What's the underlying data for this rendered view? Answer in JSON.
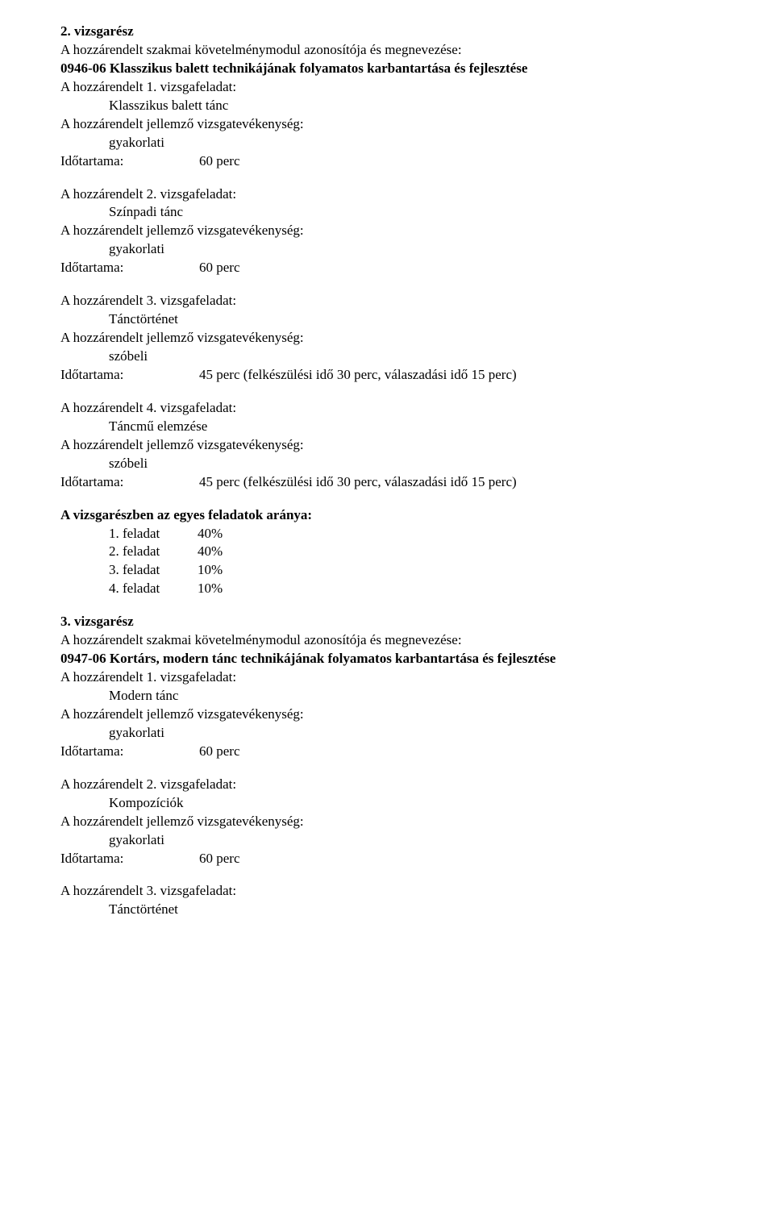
{
  "part2": {
    "title": "2. vizsgarész",
    "module_intro": "A hozzárendelt szakmai követelménymodul azonosítója és megnevezése:",
    "module_code_name": " 0946-06  Klasszikus balett technikájának folyamatos karbantartása és fejlesztése",
    "tasks": [
      {
        "header": "A hozzárendelt 1. vizsgafeladat:",
        "name": "Klasszikus balett tánc",
        "activity_intro": "A hozzárendelt jellemző vizsgatevékenység:",
        "activity_type": "gyakorlati",
        "duration_label": "Időtartama:",
        "duration_value": "60 perc"
      },
      {
        "header": "A hozzárendelt 2. vizsgafeladat:",
        "name": "Színpadi tánc",
        "activity_intro": "A hozzárendelt jellemző vizsgatevékenység:",
        "activity_type": "gyakorlati",
        "duration_label": "Időtartama:",
        "duration_value": "60 perc"
      },
      {
        "header": "A hozzárendelt 3. vizsgafeladat:",
        "name": "Tánctörténet",
        "activity_intro": "A hozzárendelt jellemző vizsgatevékenység:",
        "activity_type": "szóbeli",
        "duration_label": "Időtartama:",
        "duration_value": "45 perc (felkészülési idő 30 perc, válaszadási idő 15 perc)"
      },
      {
        "header": "A hozzárendelt 4. vizsgafeladat:",
        "name": "Táncmű elemzése",
        "activity_intro": "A hozzárendelt jellemző vizsgatevékenység:",
        "activity_type": "szóbeli",
        "duration_label": "Időtartama:",
        "duration_value": "45 perc (felkészülési idő 30 perc, válaszadási idő 15 perc)"
      }
    ],
    "ratio_title": "A vizsgarészben az egyes feladatok aránya:",
    "ratios": [
      {
        "label": "1. feladat",
        "value": "40%"
      },
      {
        "label": "2. feladat",
        "value": "40%"
      },
      {
        "label": "3. feladat",
        "value": "10%"
      },
      {
        "label": "4. feladat",
        "value": "10%"
      }
    ]
  },
  "part3": {
    "title": "3. vizsgarész",
    "module_intro": "A hozzárendelt szakmai követelménymodul azonosítója és megnevezése:",
    "module_code_name": " 0947-06  Kortárs, modern tánc technikájának folyamatos karbantartása és fejlesztése",
    "tasks": [
      {
        "header": "A hozzárendelt 1. vizsgafeladat:",
        "name": "Modern tánc",
        "activity_intro": "A hozzárendelt jellemző vizsgatevékenység:",
        "activity_type": "gyakorlati",
        "duration_label": "Időtartama:",
        "duration_value": "60 perc"
      },
      {
        "header": "A hozzárendelt 2. vizsgafeladat:",
        "name": "Kompozíciók",
        "activity_intro": "A hozzárendelt jellemző vizsgatevékenység:",
        "activity_type": "gyakorlati",
        "duration_label": "Időtartama:",
        "duration_value": "60 perc"
      },
      {
        "header": "A hozzárendelt 3. vizsgafeladat:",
        "name": "Tánctörténet"
      }
    ]
  }
}
